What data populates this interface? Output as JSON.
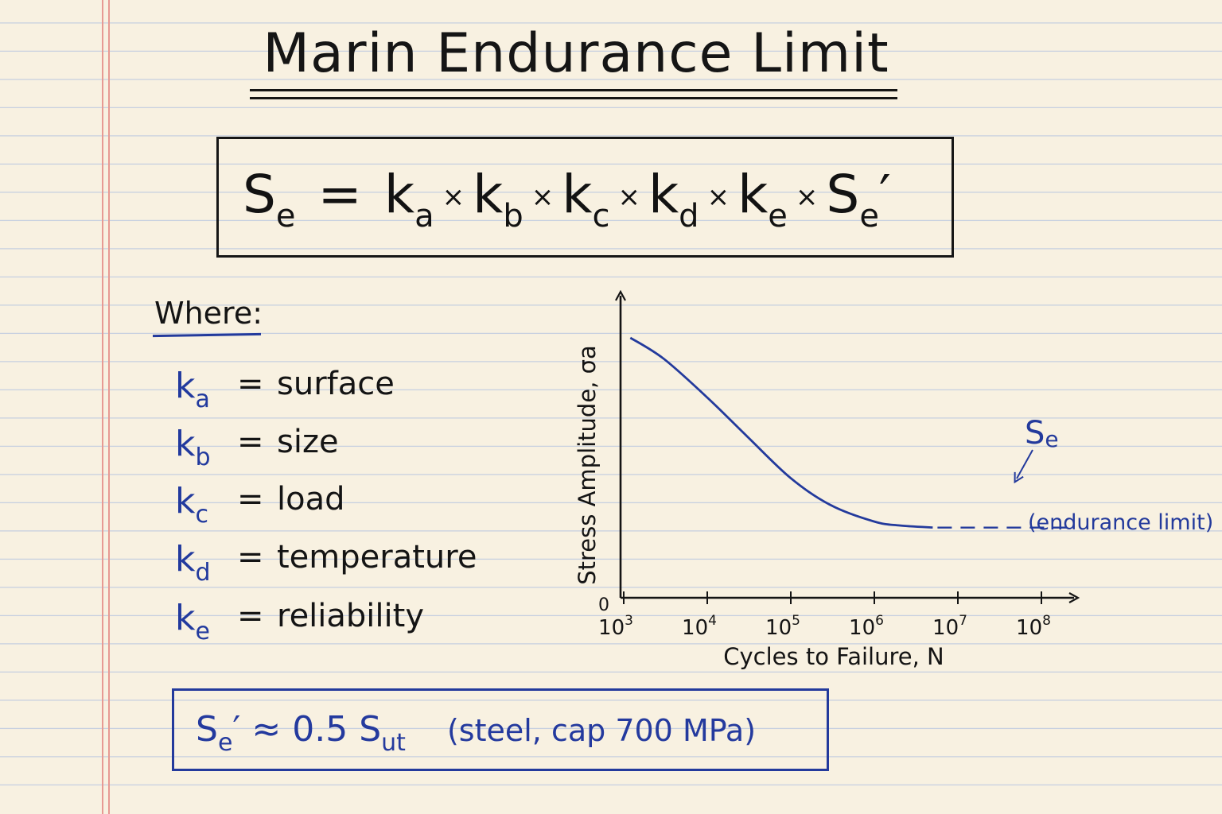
{
  "title": "Marin Endurance Limit",
  "formula": {
    "lhs": "S",
    "lhs_sub": "e",
    "equals": "=",
    "times": "×",
    "factors": [
      {
        "sym": "k",
        "sub": "a"
      },
      {
        "sym": "k",
        "sub": "b"
      },
      {
        "sym": "k",
        "sub": "c"
      },
      {
        "sym": "k",
        "sub": "d"
      },
      {
        "sym": "k",
        "sub": "e"
      }
    ],
    "last": "S",
    "last_sub": "e",
    "last_prime": "′"
  },
  "where_label": "Where:",
  "coefficients": [
    {
      "sym": "k",
      "sub": "a",
      "eq": "=",
      "name": "surface"
    },
    {
      "sym": "k",
      "sub": "b",
      "eq": "=",
      "name": "size"
    },
    {
      "sym": "k",
      "sub": "c",
      "eq": "=",
      "name": "load"
    },
    {
      "sym": "k",
      "sub": "d",
      "eq": "=",
      "name": "temperature"
    },
    {
      "sym": "k",
      "sub": "e",
      "eq": "=",
      "name": "reliability"
    }
  ],
  "note": {
    "lhs": "S",
    "lhs_sub": "e",
    "prime": "′",
    "approx": "≈ 0.5",
    "s": "S",
    "s_sub": "ut",
    "detail": "(steel, cap 700 MPa)"
  },
  "colors": {
    "ink": "#141414",
    "blue": "#233a9c",
    "paper": "#f8f1e1",
    "rule": "#c5cee0",
    "margin": "#e79a93"
  },
  "chart_data": {
    "type": "line",
    "xlabel": "Cycles to Failure, N",
    "ylabel": "Stress Amplitude, σa",
    "x_scale": "log",
    "xlim": [
      1000,
      100000000
    ],
    "y_origin_label": "0",
    "x_ticks": [
      {
        "base": "10",
        "exp": "3",
        "value": 1000
      },
      {
        "base": "10",
        "exp": "4",
        "value": 10000
      },
      {
        "base": "10",
        "exp": "5",
        "value": 100000
      },
      {
        "base": "10",
        "exp": "6",
        "value": 1000000
      },
      {
        "base": "10",
        "exp": "7",
        "value": 10000000
      },
      {
        "base": "10",
        "exp": "8",
        "value": 100000000
      }
    ],
    "ylim": [
      0,
      1
    ],
    "curve": [
      {
        "x": 1200,
        "y": 0.87
      },
      {
        "x": 3000,
        "y": 0.8
      },
      {
        "x": 10000,
        "y": 0.67
      },
      {
        "x": 30000,
        "y": 0.54
      },
      {
        "x": 100000,
        "y": 0.4
      },
      {
        "x": 300000,
        "y": 0.31
      },
      {
        "x": 1000000,
        "y": 0.255
      },
      {
        "x": 2000000,
        "y": 0.242
      },
      {
        "x": 5000000,
        "y": 0.235
      }
    ],
    "endurance_line": {
      "x_start": 5000000,
      "x_end": 100000000,
      "y": 0.235,
      "style": "dashed"
    },
    "annotation": {
      "symbol": "S",
      "sub": "e",
      "caption": "(endurance limit)"
    }
  }
}
